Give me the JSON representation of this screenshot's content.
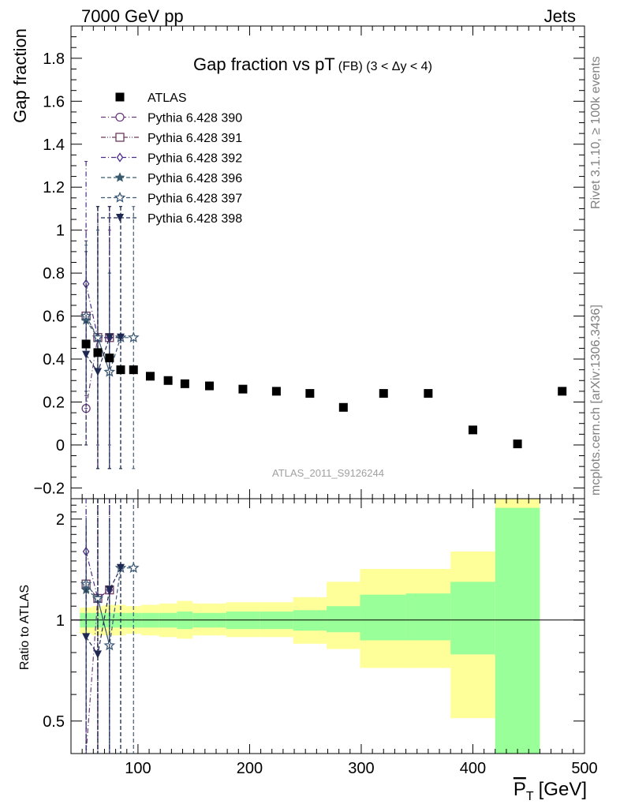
{
  "header": {
    "energy_label": "7000 GeV pp",
    "process_label": "Jets",
    "side_label_top": "Rivet 3.1.10, ≥ 100k events",
    "side_label_bottom": "mcplots.cern.ch [arXiv:1306.3436]",
    "analysis_id": "ATLAS_2011_S9126244"
  },
  "chart_data": [
    {
      "type": "scatter",
      "title": "Gap fraction vs pT (FB) (3 < Δy < 4)",
      "title_main": "Gap fraction vs pT",
      "title_sub": "(FB) (3 < Δy < 4)",
      "ylabel": "Gap fraction",
      "xlim": [
        40,
        500
      ],
      "ylim": [
        -0.25,
        1.95
      ],
      "xticks": [
        100,
        200,
        300,
        400,
        500
      ],
      "yticks": [
        -0.2,
        0,
        0.2,
        0.4,
        0.6,
        0.8,
        1,
        1.2,
        1.4,
        1.6,
        1.8
      ],
      "ytick_labels": [
        "−0.2",
        "0",
        "0.2",
        "0.4",
        "0.6",
        "0.8",
        "1",
        "1.2",
        "1.4",
        "1.6",
        "1.8"
      ],
      "legend_position": "top-left",
      "data": {
        "name": "ATLAS",
        "x": [
          53.5,
          64,
          74.5,
          84.5,
          96,
          111,
          127,
          142,
          164,
          194,
          224,
          254,
          284,
          320,
          360,
          400,
          440,
          480
        ],
        "y": [
          0.47,
          0.43,
          0.405,
          0.35,
          0.35,
          0.32,
          0.3,
          0.285,
          0.275,
          0.26,
          0.25,
          0.24,
          0.175,
          0.24,
          0.24,
          0.07,
          0.005,
          0.25
        ],
        "color": "#000000"
      },
      "series": [
        {
          "name": "Pythia 6.428 390",
          "marker": "circle-open",
          "line": "dashdot",
          "color": "#6a3d7a",
          "x": [
            53.5,
            64,
            74.5
          ],
          "y": [
            0.17,
            0.5,
            0.5
          ],
          "ylo": [
            0.0,
            0.0,
            0.0
          ],
          "yhi": [
            1.0,
            1.0,
            1.0
          ]
        },
        {
          "name": "Pythia 6.428 391",
          "marker": "square-open",
          "line": "dashdotdot",
          "color": "#6a3a5e",
          "x": [
            53.5,
            64,
            74.5
          ],
          "y": [
            0.6,
            0.5,
            0.5
          ],
          "ylo": [
            0.25,
            -0.11,
            -0.11
          ],
          "yhi": [
            0.95,
            1.11,
            1.11
          ]
        },
        {
          "name": "Pythia 6.428 392",
          "marker": "diamond-open",
          "line": "dashdot",
          "color": "#4b2c88",
          "x": [
            53.5,
            64,
            74.5
          ],
          "y": [
            0.75,
            0.5,
            0.5
          ],
          "ylo": [
            0.17,
            -0.11,
            -0.11
          ],
          "yhi": [
            1.32,
            1.11,
            1.11
          ]
        },
        {
          "name": "Pythia 6.428 396",
          "marker": "star-filled",
          "line": "dashed",
          "color": "#3a5a6e",
          "x": [
            53.5,
            64,
            74.5
          ],
          "y": [
            0.58,
            0.5,
            0.34
          ],
          "ylo": [
            0.23,
            -0.11,
            -0.11
          ],
          "yhi": [
            0.93,
            1.11,
            0.8
          ]
        },
        {
          "name": "Pythia 6.428 397",
          "marker": "star-open",
          "line": "dashed",
          "color": "#3c5a77",
          "x": [
            53.5,
            64,
            74.5,
            84.5,
            96
          ],
          "y": [
            0.6,
            0.5,
            0.34,
            0.5,
            0.5
          ],
          "ylo": [
            0.25,
            0.0,
            -0.11,
            -0.11,
            -0.11
          ],
          "yhi": [
            0.95,
            1.0,
            0.8,
            1.11,
            1.11
          ]
        },
        {
          "name": "Pythia 6.428 398",
          "marker": "triangle-down-filled",
          "line": "dashed",
          "color": "#1e2850",
          "x": [
            53.5,
            64,
            74.5,
            84.5
          ],
          "y": [
            0.42,
            0.34,
            0.5,
            0.5
          ],
          "ylo": [
            0.0,
            -0.11,
            -0.11,
            -0.11
          ],
          "yhi": [
            0.9,
            1.11,
            1.11,
            1.11
          ]
        }
      ]
    },
    {
      "type": "line",
      "ylabel": "Ratio to ATLAS",
      "xlabel_main": "P",
      "xlabel_sub": "T",
      "xlabel_unit": "[GeV]",
      "xlim": [
        40,
        500
      ],
      "ylim": [
        0.4,
        2.3
      ],
      "log_y": true,
      "xticks": [
        100,
        200,
        300,
        400,
        500
      ],
      "yticks": [
        0.5,
        1,
        2
      ],
      "ytick_labels": [
        "0.5",
        "1",
        "2"
      ],
      "bands": {
        "edges": [
          48,
          59,
          69,
          80,
          89,
          103,
          119,
          135,
          149,
          179,
          209,
          239,
          269,
          299,
          340,
          380,
          420,
          460,
          500
        ],
        "yellow_lo": [
          0.91,
          0.9,
          0.9,
          0.9,
          0.91,
          0.9,
          0.89,
          0.88,
          0.9,
          0.89,
          0.89,
          0.85,
          0.82,
          0.72,
          0.72,
          0.51,
          0.38,
          null,
          0.38
        ],
        "yellow_hi": [
          1.09,
          1.1,
          1.11,
          1.11,
          1.1,
          1.11,
          1.12,
          1.14,
          1.12,
          1.13,
          1.13,
          1.17,
          1.3,
          1.42,
          1.42,
          1.6,
          2.3,
          null,
          2.3
        ],
        "green_lo": [
          0.95,
          0.95,
          0.95,
          0.95,
          0.95,
          0.95,
          0.95,
          0.94,
          0.95,
          0.94,
          0.94,
          0.93,
          0.92,
          0.87,
          0.87,
          0.79,
          0.38,
          null,
          0.38
        ],
        "green_hi": [
          1.05,
          1.05,
          1.05,
          1.05,
          1.05,
          1.05,
          1.05,
          1.06,
          1.05,
          1.06,
          1.06,
          1.07,
          1.1,
          1.19,
          1.2,
          1.3,
          2.16,
          null,
          1.88
        ]
      },
      "series": [
        {
          "name": "Pythia 6.428 390",
          "color": "#6a3d7a",
          "line": "dashdot",
          "marker": "circle-open",
          "x": [
            53.5,
            64,
            74.5
          ],
          "y": [
            0.36,
            1.16,
            1.23
          ]
        },
        {
          "name": "Pythia 6.428 391",
          "color": "#6a3a5e",
          "line": "dashdotdot",
          "marker": "square-open",
          "x": [
            53.5,
            64,
            74.5
          ],
          "y": [
            1.28,
            1.16,
            1.23
          ]
        },
        {
          "name": "Pythia 6.428 392",
          "color": "#4b2c88",
          "line": "dashdot",
          "marker": "diamond-open",
          "x": [
            53.5,
            64,
            74.5
          ],
          "y": [
            1.6,
            1.16,
            1.23
          ]
        },
        {
          "name": "Pythia 6.428 396",
          "color": "#3a5a6e",
          "line": "dashed",
          "marker": "star-filled",
          "x": [
            53.5,
            64,
            74.5
          ],
          "y": [
            1.23,
            1.16,
            0.84
          ]
        },
        {
          "name": "Pythia 6.428 397",
          "color": "#3c5a77",
          "line": "dashed",
          "marker": "star-open",
          "x": [
            53.5,
            64,
            74.5,
            84.5,
            96
          ],
          "y": [
            1.28,
            1.16,
            0.84,
            1.43,
            1.43
          ]
        },
        {
          "name": "Pythia 6.428 398",
          "color": "#1e2850",
          "line": "dashed",
          "marker": "triangle-down-filled",
          "x": [
            53.5,
            64,
            74.5,
            84.5
          ],
          "y": [
            0.89,
            0.79,
            1.23,
            1.43
          ]
        }
      ]
    }
  ],
  "colors": {
    "band_yellow": "#ffff99",
    "band_green": "#99ff99",
    "data": "#000000",
    "frame": "#000000"
  }
}
